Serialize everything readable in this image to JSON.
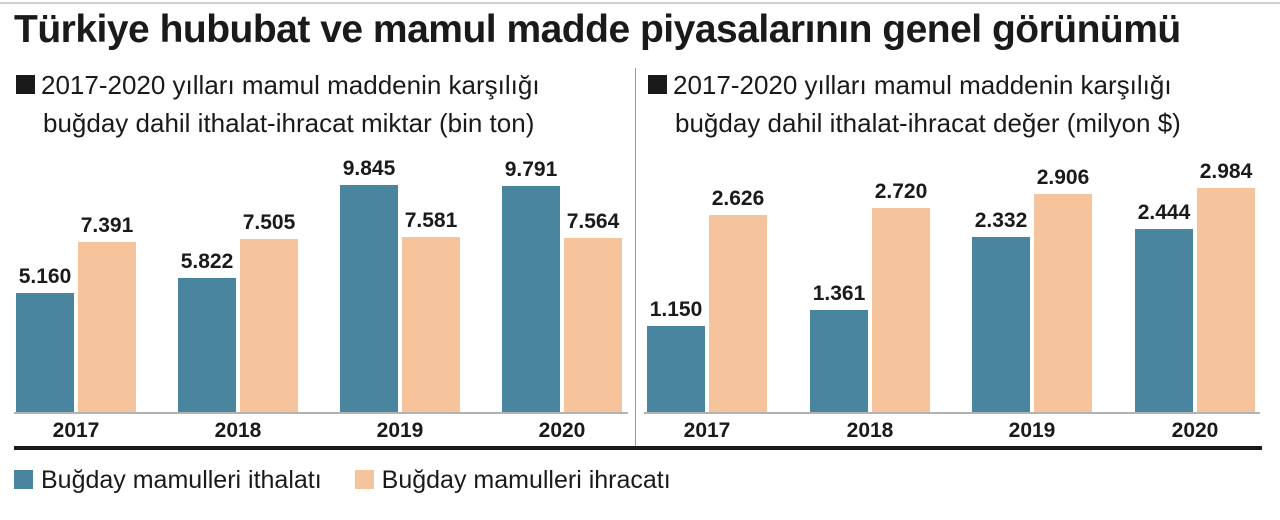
{
  "title": "Türkiye hububat ve mamul madde piyasalarının genel görünümü",
  "colors": {
    "import": "#4a85a0",
    "export": "#f5c49c",
    "text": "#1a1a1a"
  },
  "legend": {
    "import": "Buğday mamulleri ithalatı",
    "export": "Buğday mamulleri ihracatı"
  },
  "chart_data": [
    {
      "type": "bar",
      "title_line1": "2017-2020 yılları mamul maddenin karşılığı",
      "title_line2": "buğday dahil ithalat-ihracat miktar (bin ton)",
      "categories": [
        "2017",
        "2018",
        "2019",
        "2020"
      ],
      "series": [
        {
          "name": "Buğday mamulleri ithalatı",
          "values": [
            5160,
            5822,
            9845,
            9791
          ],
          "labels": [
            "5.160",
            "5.822",
            "9.845",
            "9.791"
          ]
        },
        {
          "name": "Buğday mamulleri ihracatı",
          "values": [
            7391,
            7505,
            7581,
            7564
          ],
          "labels": [
            "7.391",
            "7.505",
            "7.581",
            "7.564"
          ]
        }
      ],
      "ylim": [
        0,
        10500
      ],
      "grid": false,
      "legend": "bottom"
    },
    {
      "type": "bar",
      "title_line1": "2017-2020 yılları mamul maddenin karşılığı",
      "title_line2": "buğday dahil ithalat-ihracat değer (milyon $)",
      "categories": [
        "2017",
        "2018",
        "2019",
        "2020"
      ],
      "series": [
        {
          "name": "Buğday mamulleri ithalatı",
          "values": [
            1150,
            1361,
            2332,
            2444
          ],
          "labels": [
            "1.150",
            "1.361",
            "2.332",
            "2.444"
          ]
        },
        {
          "name": "Buğday mamulleri ihracatı",
          "values": [
            2626,
            2720,
            2906,
            2984
          ],
          "labels": [
            "2.626",
            "2.720",
            "2.906",
            "2.984"
          ]
        }
      ],
      "ylim": [
        0,
        3150
      ],
      "grid": false,
      "legend": "bottom"
    }
  ]
}
